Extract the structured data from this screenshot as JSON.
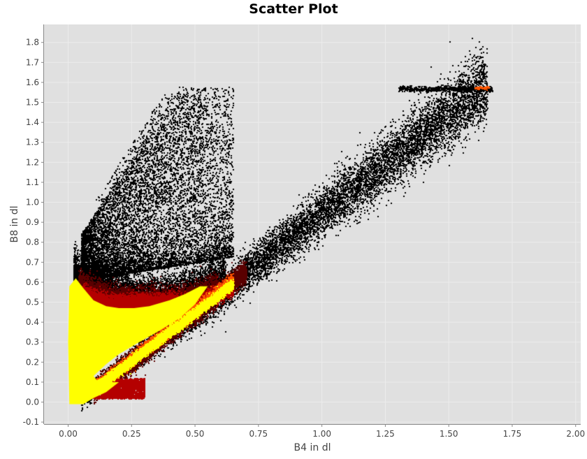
{
  "chart_data": {
    "type": "scatter",
    "title": "Scatter Plot",
    "xlabel": "B4 in dl",
    "ylabel": "B8 in dl",
    "xlim": [
      -0.095,
      2.02
    ],
    "ylim": [
      -0.11,
      1.89
    ],
    "x_ticks": [
      "0.00",
      "0.25",
      "0.50",
      "0.75",
      "1.00",
      "1.25",
      "1.50",
      "1.75",
      "2.00"
    ],
    "y_ticks": [
      "-0.1",
      "0.0",
      "0.1",
      "0.2",
      "0.3",
      "0.4",
      "0.5",
      "0.6",
      "0.7",
      "0.8",
      "0.9",
      "1.0",
      "1.1",
      "1.2",
      "1.3",
      "1.4",
      "1.5",
      "1.6",
      "1.7",
      "1.8"
    ],
    "grid": true,
    "legend": "none",
    "colors": {
      "plot_background": "#e0e0e0",
      "grid": "#ececec",
      "density_low": "#000000",
      "density_mid_dark": "#5a0000",
      "density_mid": "#b40000",
      "density_high": "#ff5500",
      "density_max": "#ffff00"
    },
    "density_regions": [
      {
        "name": "bare-soil-line",
        "points": [
          [
            0.05,
            -0.02
          ],
          [
            0.3,
            0.13
          ],
          [
            0.5,
            0.3
          ],
          [
            0.75,
            0.55
          ],
          [
            1.0,
            0.8
          ],
          [
            1.25,
            1.13
          ],
          [
            1.5,
            1.45
          ],
          [
            1.65,
            1.58
          ]
        ]
      },
      {
        "name": "vegetation-cluster",
        "points": [
          [
            0.0,
            0.0
          ],
          [
            0.0,
            0.65
          ],
          [
            0.1,
            0.6
          ],
          [
            0.3,
            0.47
          ],
          [
            0.5,
            0.55
          ],
          [
            0.6,
            0.58
          ]
        ]
      },
      {
        "name": "upper-scatter",
        "points": [
          [
            0.1,
            0.7
          ],
          [
            0.3,
            1.0
          ],
          [
            0.5,
            1.2
          ],
          [
            0.3,
            1.35
          ],
          [
            0.15,
            1.5
          ]
        ]
      }
    ]
  }
}
